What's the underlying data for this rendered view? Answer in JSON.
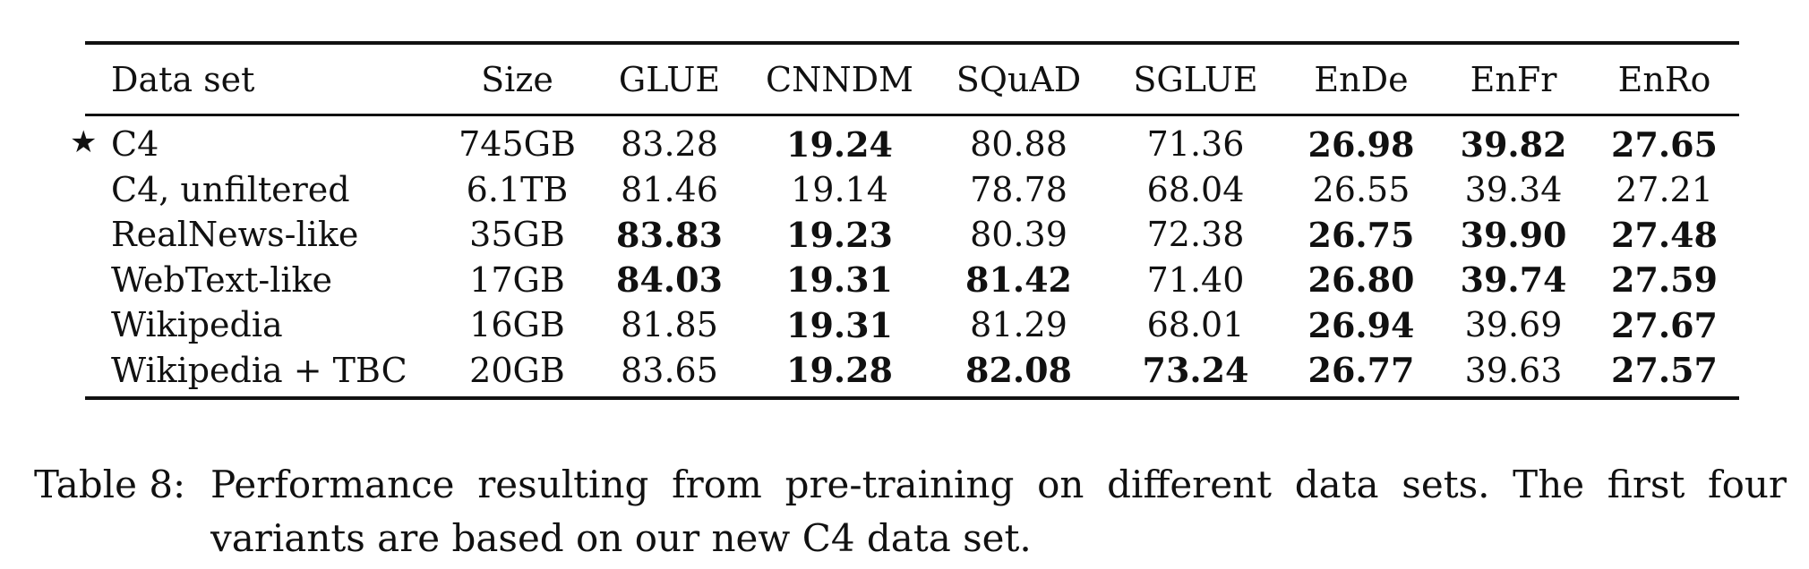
{
  "table": {
    "headers": [
      "Data set",
      "Size",
      "GLUE",
      "CNNDM",
      "SQuAD",
      "SGLUE",
      "EnDe",
      "EnFr",
      "EnRo"
    ],
    "baseline_marker": "★",
    "rows": [
      {
        "name": "C4",
        "baseline": true,
        "cells": [
          "745GB",
          "83.28",
          "19.24",
          "80.88",
          "71.36",
          "26.98",
          "39.82",
          "27.65"
        ],
        "bold": [
          false,
          false,
          true,
          false,
          false,
          true,
          true,
          true
        ]
      },
      {
        "name": "C4, unfiltered",
        "baseline": false,
        "cells": [
          "6.1TB",
          "81.46",
          "19.14",
          "78.78",
          "68.04",
          "26.55",
          "39.34",
          "27.21"
        ],
        "bold": [
          false,
          false,
          false,
          false,
          false,
          false,
          false,
          false
        ]
      },
      {
        "name": "RealNews-like",
        "baseline": false,
        "cells": [
          "35GB",
          "83.83",
          "19.23",
          "80.39",
          "72.38",
          "26.75",
          "39.90",
          "27.48"
        ],
        "bold": [
          false,
          true,
          true,
          false,
          false,
          true,
          true,
          true
        ]
      },
      {
        "name": "WebText-like",
        "baseline": false,
        "cells": [
          "17GB",
          "84.03",
          "19.31",
          "81.42",
          "71.40",
          "26.80",
          "39.74",
          "27.59"
        ],
        "bold": [
          false,
          true,
          true,
          true,
          false,
          true,
          true,
          true
        ]
      },
      {
        "name": "Wikipedia",
        "baseline": false,
        "cells": [
          "16GB",
          "81.85",
          "19.31",
          "81.29",
          "68.01",
          "26.94",
          "39.69",
          "27.67"
        ],
        "bold": [
          false,
          false,
          true,
          false,
          false,
          true,
          false,
          true
        ]
      },
      {
        "name": "Wikipedia + TBC",
        "baseline": false,
        "cells": [
          "20GB",
          "83.65",
          "19.28",
          "82.08",
          "73.24",
          "26.77",
          "39.63",
          "27.57"
        ],
        "bold": [
          false,
          false,
          true,
          true,
          true,
          true,
          false,
          true
        ]
      }
    ]
  },
  "caption": {
    "label": "Table 8:",
    "line1": "Performance resulting from pre-training on different data sets. The first four",
    "line2": "variants are based on our new C4 data set."
  }
}
